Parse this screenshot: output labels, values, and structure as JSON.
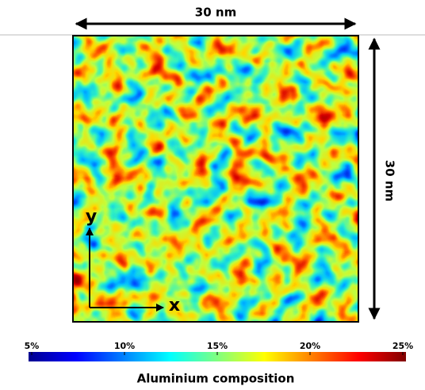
{
  "scale": {
    "horizontal": "30 nm",
    "vertical": "30 nm"
  },
  "axes": {
    "y": "y",
    "x": "x"
  },
  "colorbar": {
    "title": "Aluminium composition",
    "range": [
      5,
      25
    ],
    "ticks": [
      {
        "value": 5,
        "label": "5%"
      },
      {
        "value": 10,
        "label": "10%"
      },
      {
        "value": 15,
        "label": "15%"
      },
      {
        "value": 20,
        "label": "20%"
      },
      {
        "value": 25,
        "label": "25%"
      }
    ]
  }
}
